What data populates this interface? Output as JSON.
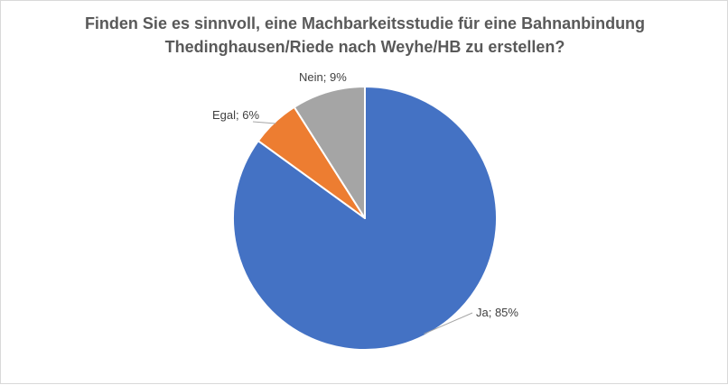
{
  "chart_data": {
    "type": "pie",
    "title_lines": [
      "Finden Sie es sinnvoll, eine Machbarkeitsstudie für eine Bahnanbindung",
      "Thedinghausen/Riede nach Weyhe/HB zu erstellen?"
    ],
    "categories": [
      "Ja",
      "Egal",
      "Nein"
    ],
    "values": [
      85,
      6,
      9
    ],
    "unit": "%",
    "labels": [
      "Ja; 85%",
      "Egal; 6%",
      "Nein; 9%"
    ],
    "colors": [
      "#4472C4",
      "#ED7D31",
      "#A5A5A5"
    ],
    "start": "12 o'clock",
    "direction": "clockwise",
    "legend": "none",
    "data_labels": "outside with leader lines"
  }
}
